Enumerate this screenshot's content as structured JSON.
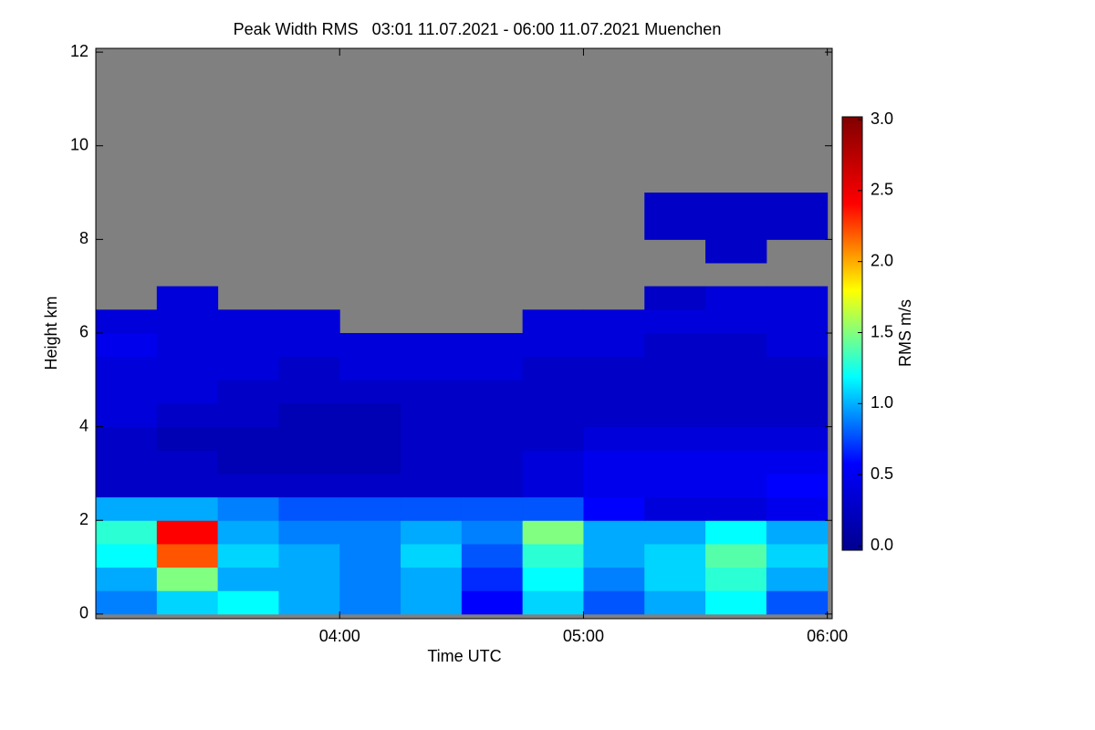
{
  "chart_data": {
    "type": "heatmap",
    "title": "Peak Width RMS   03:01 11.07.2021 - 06:00 11.07.2021 Muenchen",
    "x_label": "Time UTC",
    "y_label": "Height km",
    "colorbar_label": "RMS m/s",
    "xlim": [
      3.0,
      6.02
    ],
    "xticks": [
      {
        "value": 4,
        "label": "04:00"
      },
      {
        "value": 5,
        "label": "05:00"
      },
      {
        "value": 6,
        "label": "06:00"
      }
    ],
    "ylim": [
      -0.1,
      12.08
    ],
    "yticks": [
      0,
      2,
      4,
      6,
      8,
      10,
      12
    ],
    "clim": [
      0,
      3
    ],
    "cticks": [
      {
        "value": 0,
        "label": "0.0"
      },
      0.5,
      {
        "value": 1,
        "label": "1.0"
      },
      1.5,
      {
        "value": 2,
        "label": "2.0"
      },
      2.5,
      {
        "value": 3,
        "label": "3.0"
      }
    ],
    "colormap": [
      "#00008f",
      "#0000ff",
      "#00ffff",
      "#ffff00",
      "#ff0000",
      "#800000"
    ],
    "missing_color": "#808080",
    "x_edges": [
      3.0,
      3.25,
      3.5,
      3.75,
      4.0,
      4.25,
      4.5,
      4.75,
      5.0,
      5.25,
      5.5,
      5.75,
      6.0
    ],
    "y_edges": [
      0,
      0.5,
      1,
      1.5,
      2,
      2.5,
      3,
      3.5,
      4,
      4.5,
      5,
      5.5,
      6,
      6.5,
      7,
      7.5,
      8,
      8.5,
      9
    ],
    "z": [
      [
        0.9,
        1.1,
        1.2,
        1.0,
        0.9,
        1.0,
        0.6,
        1.1,
        0.8,
        1.0,
        1.2,
        0.8
      ],
      [
        1.0,
        1.5,
        1.0,
        1.0,
        0.9,
        1.0,
        0.7,
        1.2,
        0.9,
        1.1,
        1.3,
        1.0
      ],
      [
        1.2,
        2.2,
        1.1,
        1.0,
        0.9,
        1.1,
        0.8,
        1.3,
        1.0,
        1.1,
        1.4,
        1.1
      ],
      [
        1.3,
        2.4,
        1.0,
        0.9,
        0.9,
        1.0,
        0.9,
        1.5,
        1.0,
        1.0,
        1.2,
        1.0
      ],
      [
        1.0,
        1.0,
        0.9,
        0.8,
        0.8,
        0.8,
        0.8,
        0.8,
        0.6,
        0.4,
        0.4,
        0.5
      ],
      [
        0.3,
        0.3,
        0.3,
        0.3,
        0.3,
        0.3,
        0.3,
        0.4,
        0.5,
        0.5,
        0.5,
        0.6
      ],
      [
        0.3,
        0.3,
        0.2,
        0.2,
        0.2,
        0.3,
        0.3,
        0.4,
        0.5,
        0.5,
        0.5,
        0.5
      ],
      [
        0.3,
        0.2,
        0.2,
        0.2,
        0.2,
        0.3,
        0.3,
        0.3,
        0.4,
        0.4,
        0.4,
        0.4
      ],
      [
        0.4,
        0.3,
        0.3,
        0.2,
        0.2,
        0.3,
        0.3,
        0.3,
        0.3,
        0.3,
        0.3,
        0.3
      ],
      [
        0.4,
        0.4,
        0.3,
        0.3,
        0.3,
        0.3,
        0.3,
        0.3,
        0.3,
        0.3,
        0.3,
        0.3
      ],
      [
        0.4,
        0.4,
        0.4,
        0.3,
        0.4,
        0.4,
        0.4,
        0.3,
        0.3,
        0.3,
        0.3,
        0.3
      ],
      [
        0.5,
        0.4,
        0.4,
        0.4,
        0.4,
        0.4,
        0.4,
        0.4,
        0.4,
        0.3,
        0.3,
        0.4
      ],
      [
        0.4,
        0.4,
        0.4,
        0.4,
        null,
        null,
        null,
        0.4,
        0.4,
        0.4,
        0.4,
        0.4
      ],
      [
        null,
        0.4,
        null,
        null,
        null,
        null,
        null,
        null,
        null,
        0.3,
        0.4,
        0.4
      ],
      [
        null,
        null,
        null,
        null,
        null,
        null,
        null,
        null,
        null,
        null,
        null,
        null
      ],
      [
        null,
        null,
        null,
        null,
        null,
        null,
        null,
        null,
        null,
        null,
        0.3,
        null
      ],
      [
        null,
        null,
        null,
        null,
        null,
        null,
        null,
        null,
        null,
        0.3,
        0.3,
        0.3
      ],
      [
        null,
        null,
        null,
        null,
        null,
        null,
        null,
        null,
        null,
        0.3,
        0.3,
        0.3
      ]
    ]
  }
}
